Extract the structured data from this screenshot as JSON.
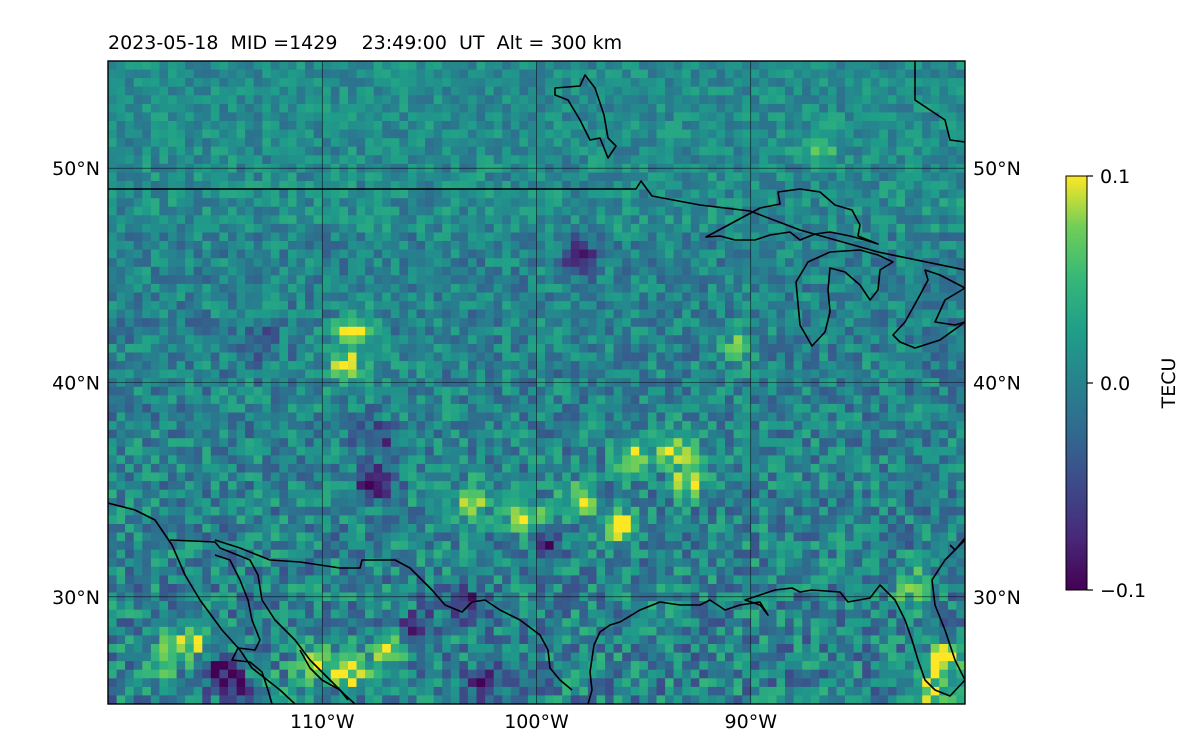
{
  "chart_data": {
    "type": "heatmap",
    "title": "2023-05-18  MID =1429    23:49:00  UT  Alt = 300 km",
    "projection": "equirectangular map",
    "xlim": [
      -120,
      -80
    ],
    "ylim": [
      25,
      55
    ],
    "x_ticks": [
      -110,
      -100,
      -90
    ],
    "x_tick_labels": [
      "110°W",
      "100°W",
      "90°W"
    ],
    "y_ticks": [
      30,
      40,
      50
    ],
    "y_tick_labels": [
      "30°N",
      "40°N",
      "50°N"
    ],
    "grid": true,
    "colormap": "viridis",
    "colorbar": {
      "label": "TECU",
      "vmin": -0.1,
      "vmax": 0.1,
      "ticks": [
        0.1,
        0.0,
        -0.1
      ],
      "tick_labels": [
        "0.1",
        "0.0",
        "−0.1"
      ],
      "placement": "right"
    },
    "field": {
      "background_value": 0.0,
      "positive_anomalies": [
        {
          "lon": -117.3,
          "lat": 27.2,
          "value": 0.1
        },
        {
          "lon": -116.0,
          "lat": 28.0,
          "value": 0.1
        },
        {
          "lon": -110.3,
          "lat": 26.8,
          "value": 0.1
        },
        {
          "lon": -108.7,
          "lat": 26.5,
          "value": 0.1
        },
        {
          "lon": -107.0,
          "lat": 27.5,
          "value": 0.08
        },
        {
          "lon": -113.0,
          "lat": 26.0,
          "value": 0.08
        },
        {
          "lon": -108.9,
          "lat": 40.8,
          "value": 0.09
        },
        {
          "lon": -108.5,
          "lat": 42.5,
          "value": 0.1
        },
        {
          "lon": -103.0,
          "lat": 34.5,
          "value": 0.1
        },
        {
          "lon": -100.5,
          "lat": 33.7,
          "value": 0.1
        },
        {
          "lon": -98.0,
          "lat": 34.5,
          "value": 0.09
        },
        {
          "lon": -96.0,
          "lat": 33.3,
          "value": 0.1
        },
        {
          "lon": -95.5,
          "lat": 36.5,
          "value": 0.1
        },
        {
          "lon": -93.5,
          "lat": 37.0,
          "value": 0.1
        },
        {
          "lon": -92.8,
          "lat": 35.5,
          "value": 0.1
        },
        {
          "lon": -86.8,
          "lat": 51.0,
          "value": 0.05
        },
        {
          "lon": -90.5,
          "lat": 41.7,
          "value": 0.06
        },
        {
          "lon": -82.5,
          "lat": 30.5,
          "value": 0.08
        },
        {
          "lon": -81.0,
          "lat": 27.0,
          "value": 0.1
        },
        {
          "lon": -81.5,
          "lat": 25.5,
          "value": 0.1
        }
      ],
      "negative_anomalies": [
        {
          "lon": -114.9,
          "lat": 26.5,
          "value": -0.1
        },
        {
          "lon": -113.5,
          "lat": 25.8,
          "value": -0.1
        },
        {
          "lon": -105.5,
          "lat": 28.5,
          "value": -0.08
        },
        {
          "lon": -102.4,
          "lat": 26.0,
          "value": -0.09
        },
        {
          "lon": -103.2,
          "lat": 29.7,
          "value": -0.06
        },
        {
          "lon": -107.5,
          "lat": 35.3,
          "value": -0.1
        },
        {
          "lon": -107.5,
          "lat": 37.4,
          "value": -0.07
        },
        {
          "lon": -98.0,
          "lat": 45.9,
          "value": -0.09
        },
        {
          "lon": -99.5,
          "lat": 32.5,
          "value": -0.07
        },
        {
          "lon": -113.0,
          "lat": 42.0,
          "value": -0.04
        }
      ]
    }
  }
}
